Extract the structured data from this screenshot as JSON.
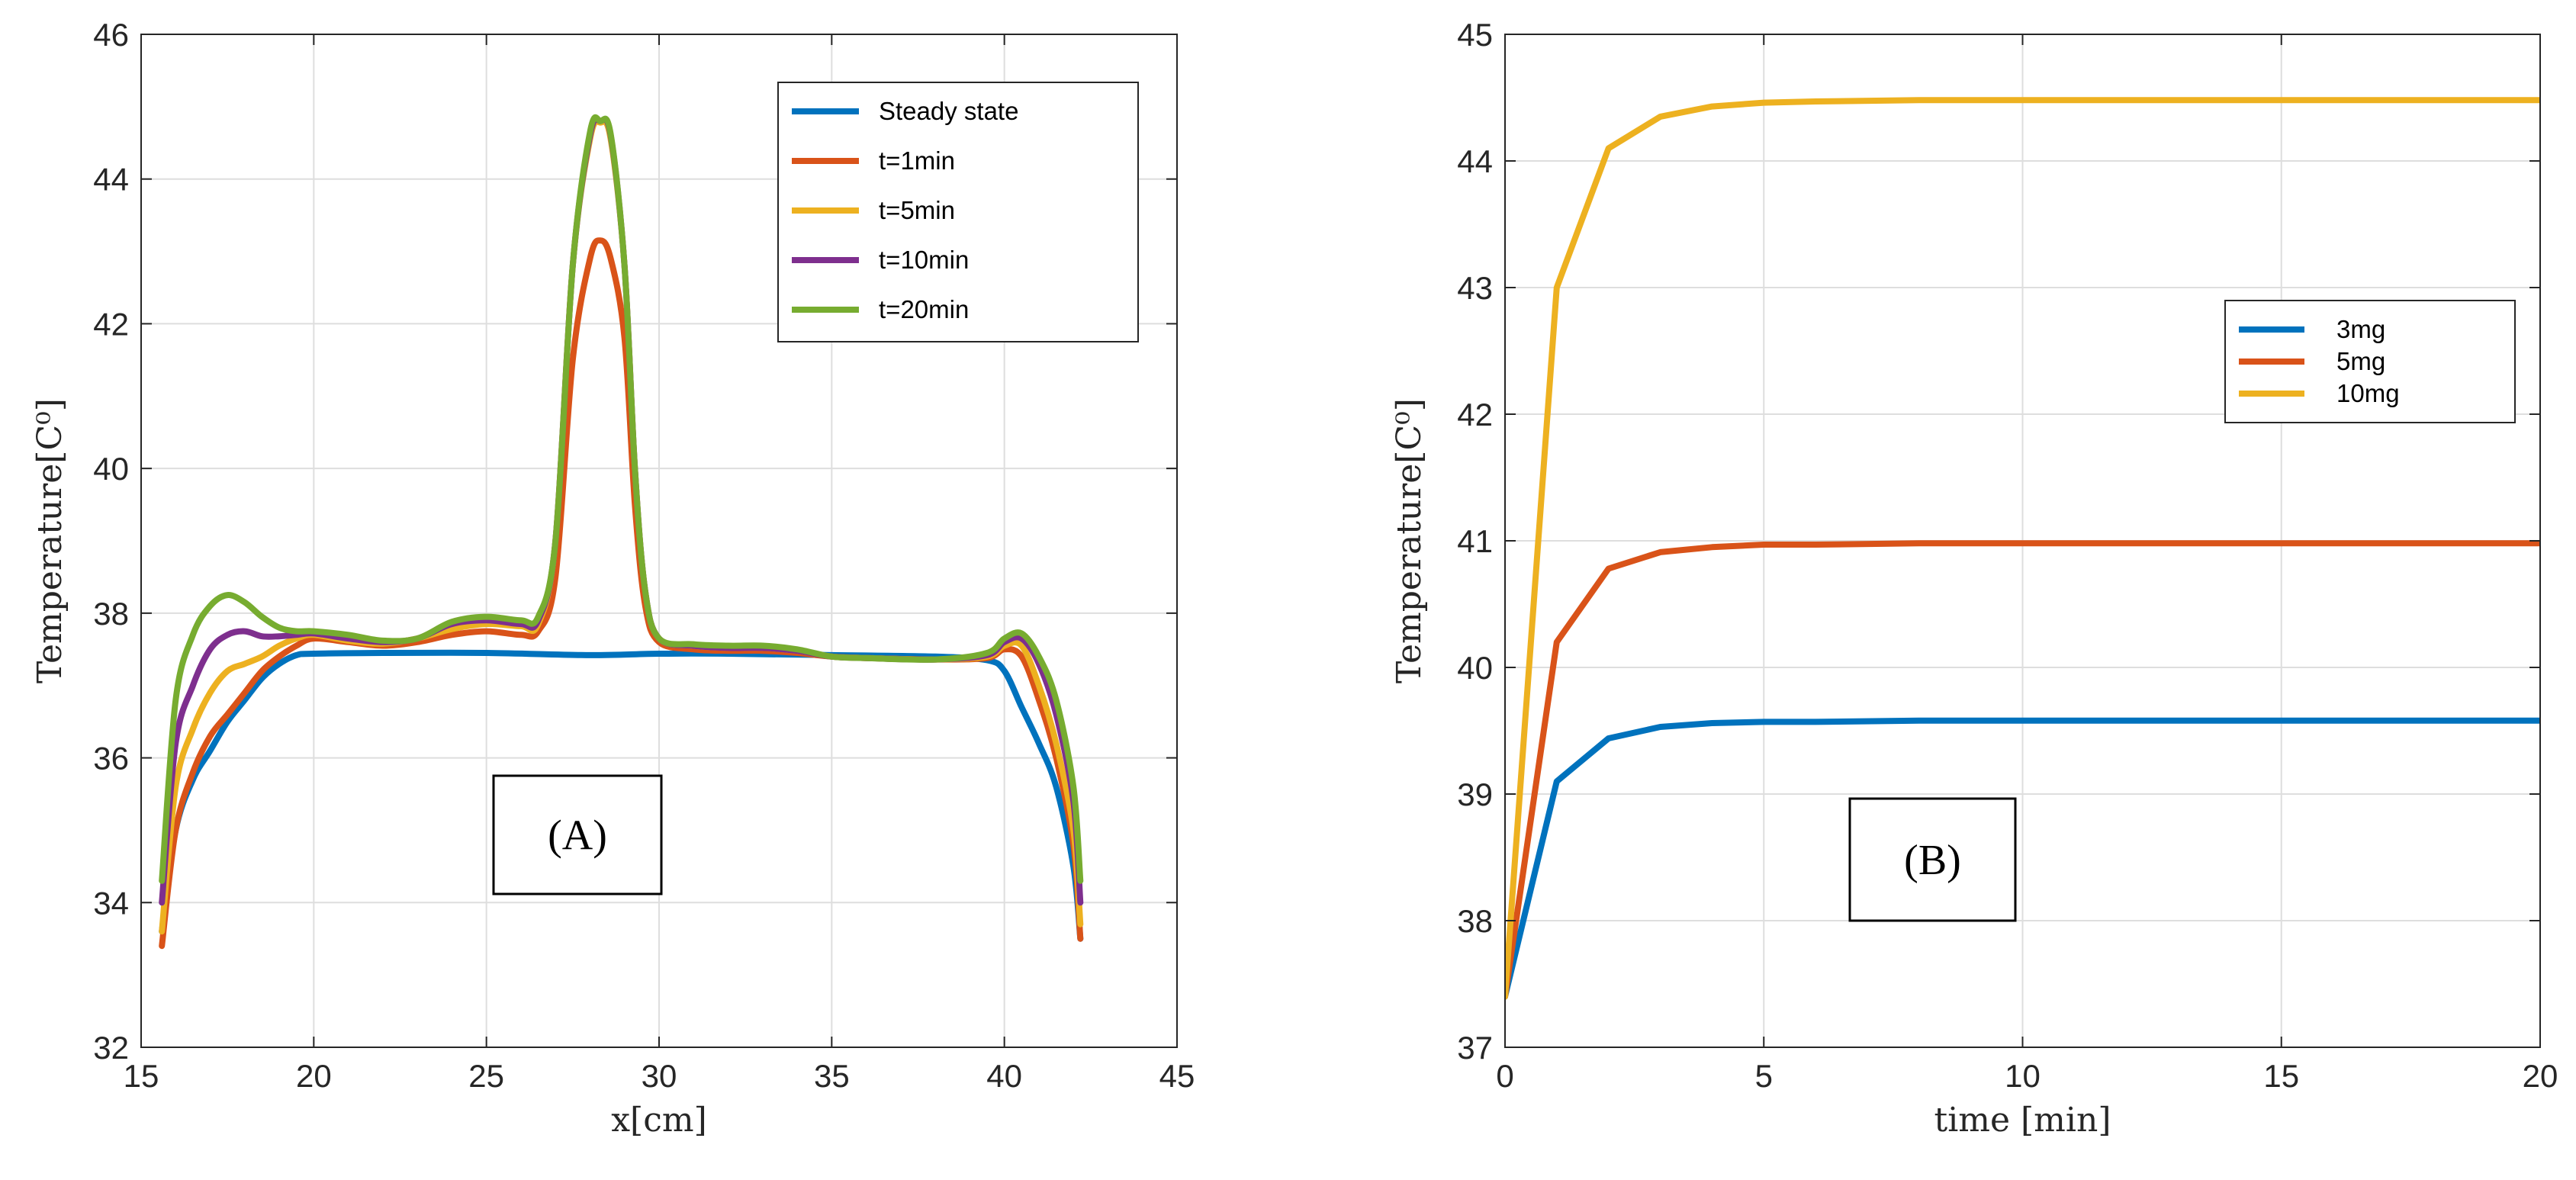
{
  "chart_data": [
    {
      "type": "line",
      "xlabel": "x[cm]",
      "ylabel": "Temperature[C⁰]",
      "annotation": "(A)",
      "xlim": [
        15,
        45
      ],
      "ylim": [
        32,
        46
      ],
      "xticks": [
        15,
        20,
        25,
        30,
        35,
        40,
        45
      ],
      "yticks": [
        32,
        34,
        36,
        38,
        40,
        42,
        44,
        46
      ],
      "grid": true,
      "legend_position": "top-right",
      "series": [
        {
          "name": "Steady state",
          "color": "#0072bd",
          "x": [
            15.6,
            16,
            16.5,
            17,
            17.5,
            18,
            18.5,
            19,
            19.5,
            20,
            22,
            25,
            28,
            30,
            32,
            35,
            38,
            39.5,
            40,
            40.5,
            41,
            41.5,
            42,
            42.2
          ],
          "y": [
            33.6,
            35.0,
            35.7,
            36.1,
            36.5,
            36.8,
            37.1,
            37.3,
            37.42,
            37.44,
            37.45,
            37.45,
            37.42,
            37.44,
            37.44,
            37.42,
            37.4,
            37.35,
            37.2,
            36.7,
            36.2,
            35.6,
            34.5,
            33.5
          ]
        },
        {
          "name": "t=1min",
          "color": "#d95319",
          "x": [
            15.6,
            16,
            16.5,
            17,
            17.5,
            18,
            18.5,
            19,
            19.5,
            20,
            21,
            22,
            23,
            24,
            25,
            26,
            26.5,
            27,
            27.5,
            28,
            28.3,
            28.6,
            29,
            29.3,
            29.6,
            30,
            31,
            32,
            33,
            34,
            35,
            36,
            38,
            39.5,
            40,
            40.5,
            41,
            41.5,
            42,
            42.2
          ],
          "y": [
            33.4,
            35.0,
            35.8,
            36.3,
            36.6,
            36.9,
            37.2,
            37.4,
            37.55,
            37.65,
            37.6,
            37.55,
            37.6,
            37.7,
            37.75,
            37.7,
            37.75,
            38.5,
            41.5,
            42.9,
            43.15,
            42.9,
            41.8,
            39.5,
            38.1,
            37.6,
            37.5,
            37.48,
            37.48,
            37.45,
            37.4,
            37.38,
            37.36,
            37.38,
            37.5,
            37.4,
            36.8,
            36.0,
            34.8,
            33.5
          ]
        },
        {
          "name": "t=5min",
          "color": "#edb120",
          "x": [
            15.6,
            16,
            16.5,
            17,
            17.5,
            18,
            18.5,
            19,
            19.5,
            20,
            21,
            22,
            23,
            24,
            25,
            26,
            26.5,
            27,
            27.5,
            28,
            28.3,
            28.6,
            29,
            29.3,
            29.6,
            30,
            31,
            32,
            33,
            34,
            35,
            36,
            38,
            39.5,
            40,
            40.5,
            41,
            41.5,
            42,
            42.2
          ],
          "y": [
            33.6,
            35.6,
            36.4,
            36.9,
            37.2,
            37.3,
            37.4,
            37.55,
            37.65,
            37.7,
            37.62,
            37.58,
            37.65,
            37.78,
            37.85,
            37.82,
            37.85,
            39.0,
            42.8,
            44.55,
            44.78,
            44.55,
            42.8,
            40.0,
            38.3,
            37.65,
            37.55,
            37.52,
            37.52,
            37.48,
            37.4,
            37.38,
            37.36,
            37.4,
            37.55,
            37.55,
            37.0,
            36.2,
            35.0,
            33.7
          ]
        },
        {
          "name": "t=10min",
          "color": "#7e2f8e",
          "x": [
            15.6,
            16,
            16.5,
            17,
            17.5,
            18,
            18.5,
            19,
            19.5,
            20,
            21,
            22,
            23,
            24,
            25,
            26,
            26.5,
            27,
            27.5,
            28,
            28.3,
            28.6,
            29,
            29.3,
            29.6,
            30,
            31,
            32,
            33,
            34,
            35,
            36,
            38,
            39.5,
            40,
            40.5,
            41,
            41.5,
            42,
            42.2
          ],
          "y": [
            34.0,
            36.2,
            37.0,
            37.5,
            37.7,
            37.75,
            37.68,
            37.68,
            37.7,
            37.72,
            37.65,
            37.6,
            37.65,
            37.85,
            37.9,
            37.85,
            37.9,
            39.0,
            42.8,
            44.6,
            44.8,
            44.6,
            42.8,
            40.0,
            38.3,
            37.65,
            37.55,
            37.52,
            37.52,
            37.48,
            37.4,
            37.38,
            37.36,
            37.42,
            37.6,
            37.65,
            37.3,
            36.6,
            35.4,
            34.0
          ]
        },
        {
          "name": "t=20min",
          "color": "#77ac30",
          "x": [
            15.6,
            16,
            16.5,
            17,
            17.5,
            18,
            18.5,
            19,
            19.5,
            20,
            21,
            22,
            23,
            24,
            25,
            26,
            26.5,
            27,
            27.5,
            28,
            28.3,
            28.6,
            29,
            29.3,
            29.6,
            30,
            31,
            32,
            33,
            34,
            35,
            36,
            38,
            39.5,
            40,
            40.5,
            41,
            41.5,
            42,
            42.2
          ],
          "y": [
            34.3,
            36.8,
            37.7,
            38.1,
            38.25,
            38.15,
            37.95,
            37.8,
            37.75,
            37.75,
            37.7,
            37.62,
            37.65,
            37.88,
            37.95,
            37.9,
            37.95,
            39.0,
            42.8,
            44.65,
            44.8,
            44.62,
            42.8,
            40.0,
            38.3,
            37.65,
            37.57,
            37.55,
            37.55,
            37.5,
            37.4,
            37.38,
            37.36,
            37.45,
            37.65,
            37.72,
            37.4,
            36.8,
            35.6,
            34.3
          ]
        }
      ]
    },
    {
      "type": "line",
      "xlabel": "time [min]",
      "ylabel": "Temperature[C⁰]",
      "annotation": "(B)",
      "xlim": [
        0,
        20
      ],
      "ylim": [
        37,
        45
      ],
      "xticks": [
        0,
        5,
        10,
        15,
        20
      ],
      "yticks": [
        37,
        38,
        39,
        40,
        41,
        42,
        43,
        44,
        45
      ],
      "grid": true,
      "legend_position": "right",
      "series": [
        {
          "name": "3mg",
          "color": "#0072bd",
          "x": [
            0,
            1,
            2,
            3,
            4,
            5,
            6,
            8,
            10,
            15,
            20
          ],
          "y": [
            37.4,
            39.1,
            39.44,
            39.53,
            39.56,
            39.57,
            39.57,
            39.58,
            39.58,
            39.58,
            39.58
          ]
        },
        {
          "name": "5mg",
          "color": "#d95319",
          "x": [
            0,
            1,
            2,
            3,
            4,
            5,
            6,
            8,
            10,
            15,
            20
          ],
          "y": [
            37.4,
            40.2,
            40.78,
            40.91,
            40.95,
            40.97,
            40.97,
            40.98,
            40.98,
            40.98,
            40.98
          ]
        },
        {
          "name": "10mg",
          "color": "#edb120",
          "x": [
            0,
            1,
            2,
            3,
            4,
            5,
            6,
            8,
            10,
            15,
            20
          ],
          "y": [
            37.4,
            43.0,
            44.1,
            44.35,
            44.43,
            44.46,
            44.47,
            44.48,
            44.48,
            44.48,
            44.48
          ]
        }
      ]
    }
  ]
}
